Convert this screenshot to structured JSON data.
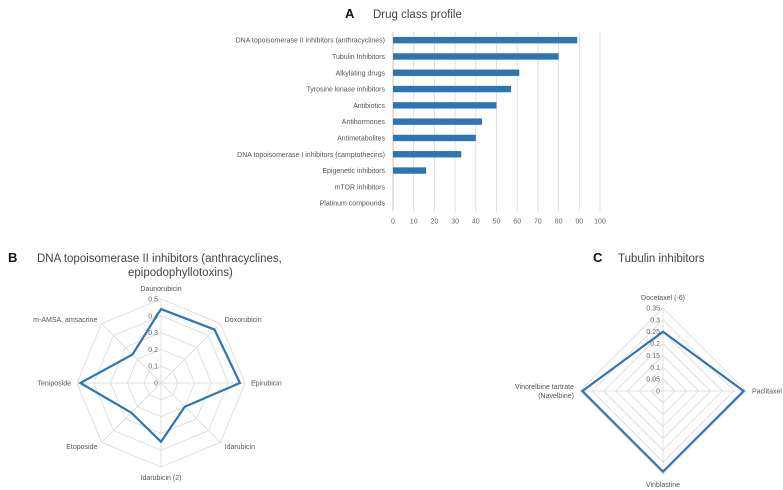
{
  "chart_data": [
    {
      "panel": "A",
      "type": "bar",
      "orientation": "horizontal",
      "title": "Drug class profile",
      "categories": [
        "DNA topoisomerase II inhibitors (anthracyclines)",
        "Tubulin Inhibitors",
        "Alkylating drugs",
        "Tyrosine kinase inhibitors",
        "Antibiotics",
        "Antihormones",
        "Antimetabolites",
        "DNA topoisomerase I inhibitors (camptothecins)",
        "Epigenetic inhibitors",
        "mTOR inhibitors",
        "Platinum compounds"
      ],
      "values": [
        89,
        80,
        61,
        57,
        50,
        43,
        40,
        33,
        16,
        0,
        0
      ],
      "xlim": [
        0,
        100
      ],
      "xticks": [
        "0",
        "10",
        "20",
        "30",
        "40",
        "50",
        "60",
        "70",
        "80",
        "90",
        "100"
      ],
      "color": "#2e75b6",
      "grid": true
    },
    {
      "panel": "B",
      "type": "radar",
      "title": "DNA topoisomerase II inhibitors (anthracyclines, epipodophyllotoxins)",
      "title_lines": [
        "DNA topoisomerase II inhibitors (anthracyclines,",
        "epipodophyllotoxins)"
      ],
      "axes": [
        "Daunorubicin",
        "Doxorubicin",
        "Epirubicin",
        "Idarubicin",
        "Idarubicin (2)",
        "Etoposide",
        "Teniposide",
        "m-AMSA, amsacrine"
      ],
      "values": [
        0.44,
        0.45,
        0.47,
        0.2,
        0.35,
        0.25,
        0.48,
        0.24
      ],
      "rmax": 0.5,
      "ticks": [
        "0",
        "0.1",
        "0.2",
        "0.3",
        "0.4",
        "0.5"
      ],
      "color": "#2e75b6"
    },
    {
      "panel": "C",
      "type": "radar",
      "title": "Tubulin inhibitors",
      "axes": [
        "Docetaxel (-6)",
        "Paclitaxel",
        "Vinblastine",
        "Vinorelbine tartrate (Navelbine)"
      ],
      "axes_lines": [
        [
          "Docetaxel (-6)"
        ],
        [
          "Paclitaxel"
        ],
        [
          "Vinblastine"
        ],
        [
          "Vinorelbine tartrate",
          "(Navelbine)"
        ]
      ],
      "values": [
        0.25,
        0.34,
        0.34,
        0.34
      ],
      "rmax": 0.35,
      "ticks": [
        "0",
        "0.05",
        "0.1",
        "0.15",
        "0.2",
        "0.25",
        "0.3",
        "0.35"
      ],
      "color": "#2e75b6"
    }
  ]
}
